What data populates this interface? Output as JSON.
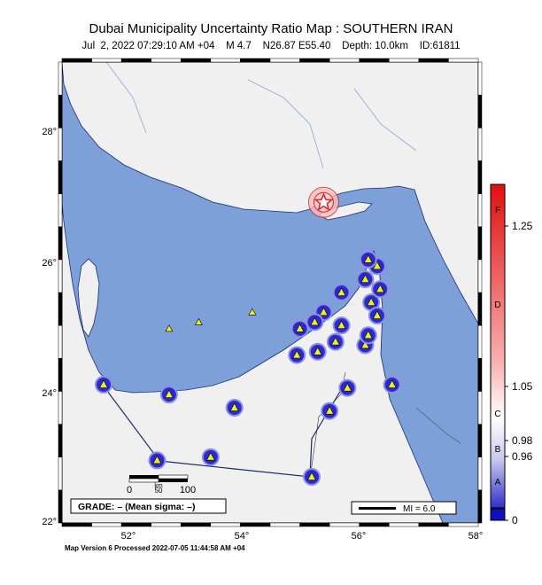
{
  "header": {
    "title": "Dubai Municipality Uncertainty Ratio Map : SOUTHERN IRAN",
    "subtitle": "Jul  2, 2022 07:29:10 AM +04    M 4.7    N26.87 E55.40    Depth: 10.0km    ID:61811"
  },
  "map": {
    "lon_range": [
      51.0,
      58.0
    ],
    "lat_range": [
      22.0,
      29.0
    ],
    "x_ticks": [
      "52°",
      "54°",
      "56°",
      "58°"
    ],
    "y_ticks": [
      "28°",
      "26°",
      "24°",
      "22°"
    ],
    "colors": {
      "water": "#7da0d8",
      "land": "#f0f0f0",
      "station": "#2a2ad0",
      "epicenter": "#e02020"
    },
    "epicenter": {
      "lon": 55.4,
      "lat": 26.87
    },
    "stations": [
      [
        51.7,
        24.1
      ],
      [
        52.6,
        22.95
      ],
      [
        53.5,
        23.0
      ],
      [
        52.8,
        23.95
      ],
      [
        53.9,
        23.75
      ],
      [
        55.2,
        22.7
      ],
      [
        55.5,
        23.7
      ],
      [
        55.8,
        24.05
      ],
      [
        56.55,
        24.1
      ],
      [
        54.95,
        24.55
      ],
      [
        55.3,
        24.6
      ],
      [
        55.0,
        24.95
      ],
      [
        55.4,
        25.2
      ],
      [
        55.25,
        25.05
      ],
      [
        55.6,
        24.75
      ],
      [
        55.7,
        25.0
      ],
      [
        55.7,
        25.5
      ],
      [
        56.1,
        24.7
      ],
      [
        56.15,
        24.85
      ],
      [
        56.2,
        25.35
      ],
      [
        56.3,
        25.15
      ],
      [
        56.1,
        25.7
      ],
      [
        56.3,
        25.9
      ],
      [
        56.15,
        26.0
      ],
      [
        56.35,
        25.55
      ]
    ],
    "triangles_small": [
      [
        52.8,
        24.95
      ],
      [
        53.3,
        25.05
      ],
      [
        54.2,
        25.2
      ]
    ]
  },
  "scale_bar": {
    "labels": [
      "0",
      "50",
      "100"
    ],
    "unit": "km"
  },
  "grade_box": {
    "text": "GRADE: – (Mean sigma: –)"
  },
  "mi_box": {
    "text": "MI = 6.0"
  },
  "colorbar": {
    "grades": [
      "F",
      "D",
      "C",
      "B",
      "A"
    ],
    "values": [
      "1.25",
      "1.05",
      "0.98",
      "0.96",
      "0"
    ]
  },
  "footer": {
    "text": "Map Version 6 Processed 2022-07-05 11:44:58 AM +04"
  }
}
